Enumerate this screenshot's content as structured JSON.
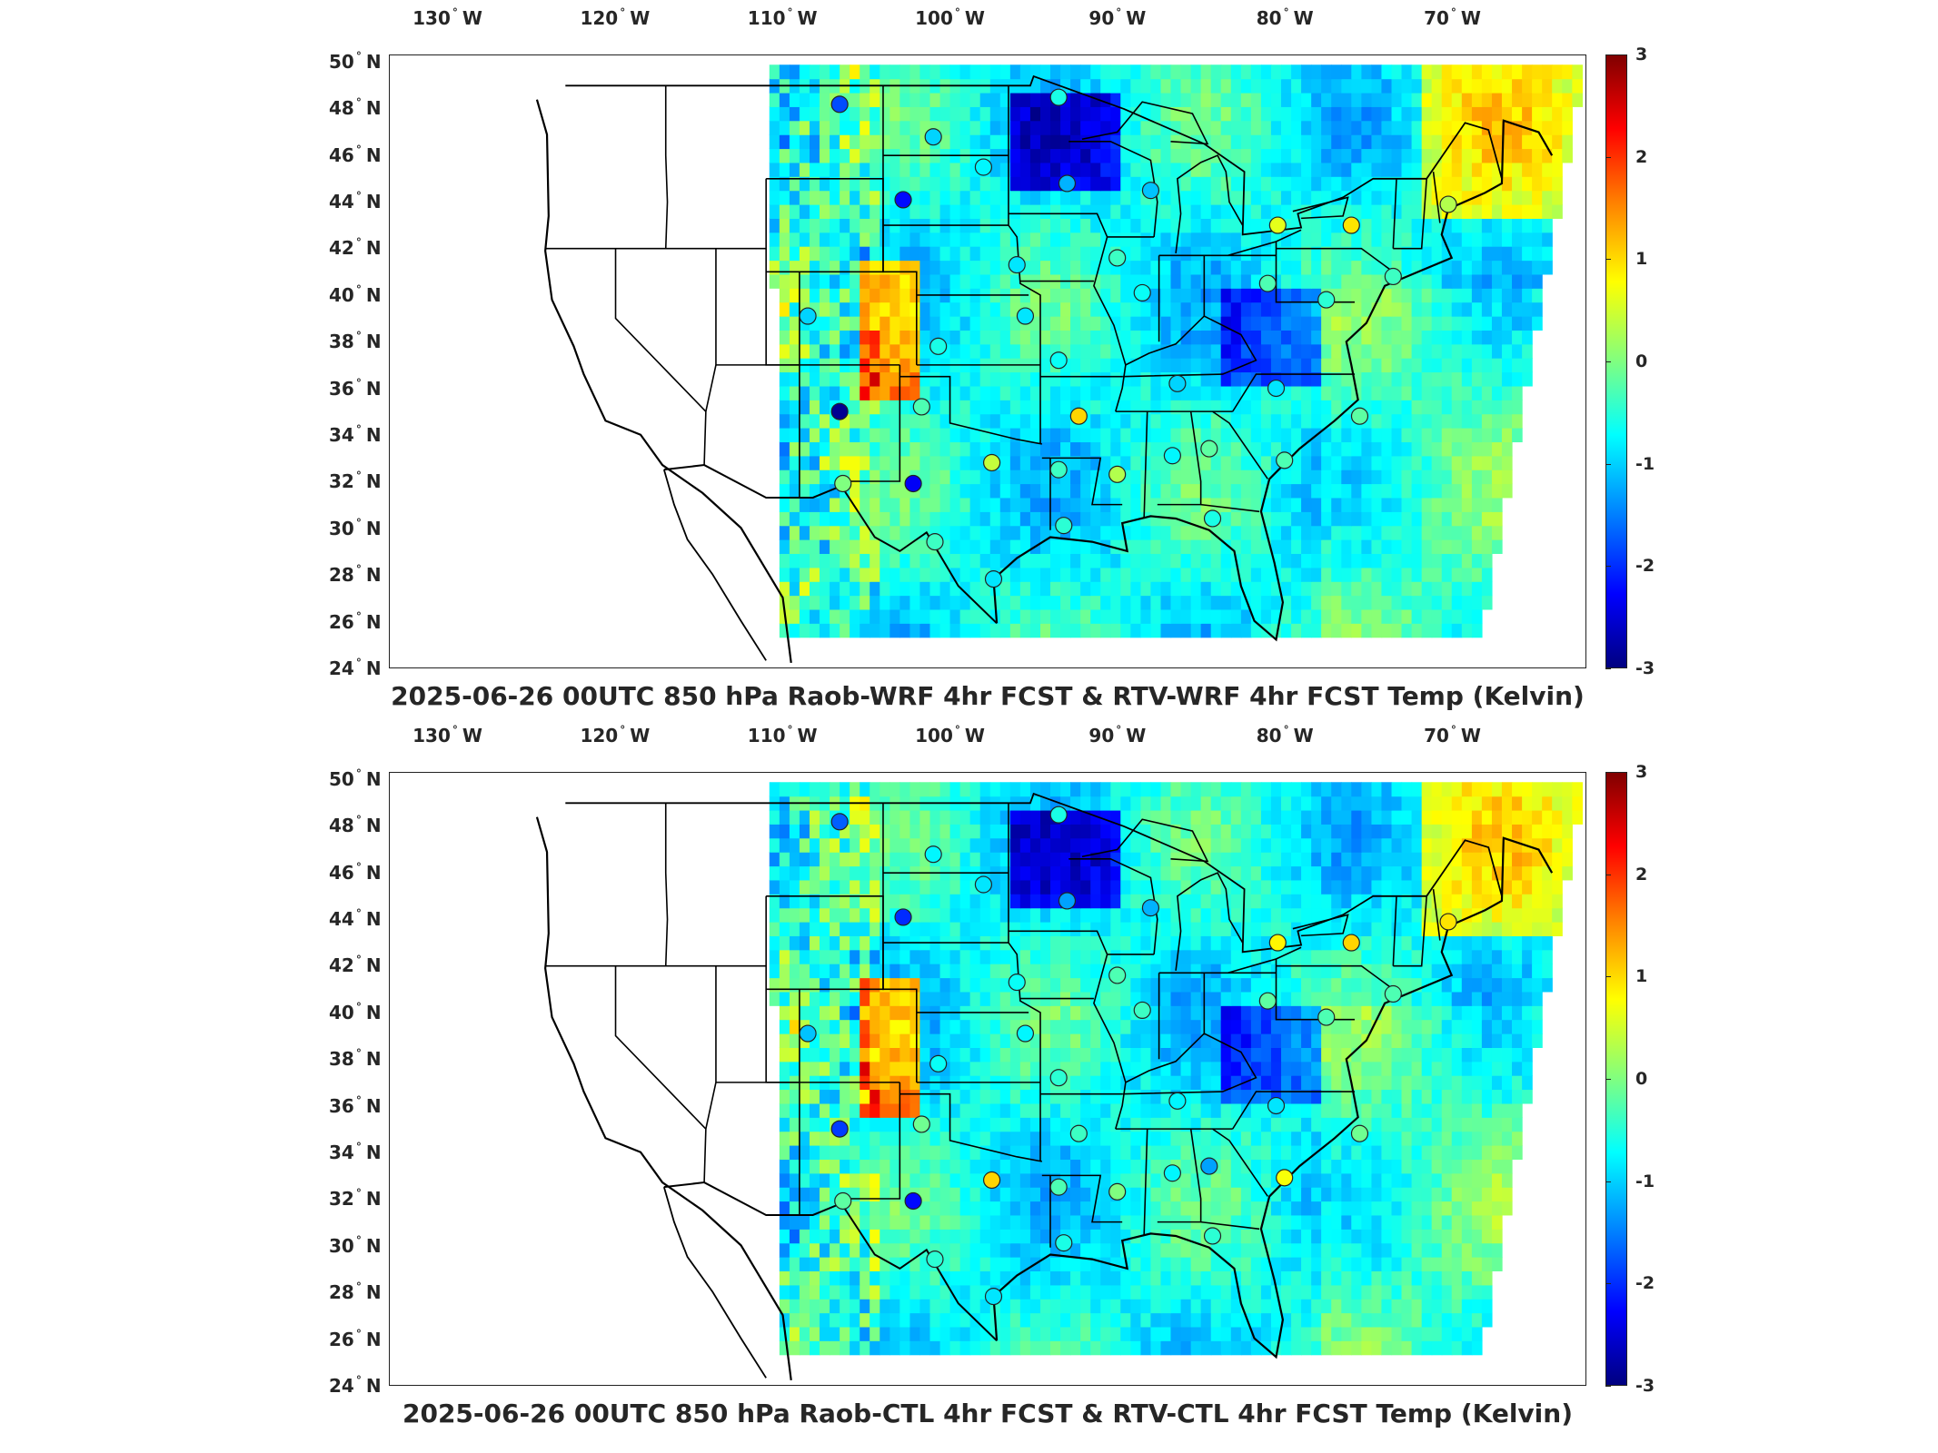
{
  "panels": [
    {
      "title": "2025-06-26 00UTC 850 hPa Raob-WRF 4hr FCST & RTV-WRF 4hr FCST Temp (Kelvin)",
      "stations": [
        {
          "lon": -106.6,
          "lat": 48.2,
          "v": -1.8
        },
        {
          "lon": -101.0,
          "lat": 46.8,
          "v": -1.0
        },
        {
          "lon": -98.0,
          "lat": 45.5,
          "v": -0.8
        },
        {
          "lon": -93.0,
          "lat": 44.8,
          "v": -1.2
        },
        {
          "lon": -88.0,
          "lat": 44.5,
          "v": -1.1
        },
        {
          "lon": -93.5,
          "lat": 48.5,
          "v": -0.6
        },
        {
          "lon": -102.8,
          "lat": 44.1,
          "v": -2.2
        },
        {
          "lon": -76.0,
          "lat": 43.0,
          "v": 0.9
        },
        {
          "lon": -70.2,
          "lat": 43.9,
          "v": 0.3
        },
        {
          "lon": -80.4,
          "lat": 43.0,
          "v": 0.6
        },
        {
          "lon": -90.0,
          "lat": 41.6,
          "v": -0.4
        },
        {
          "lon": -96.0,
          "lat": 41.3,
          "v": -0.9
        },
        {
          "lon": -88.5,
          "lat": 40.1,
          "v": -0.7
        },
        {
          "lon": -81.0,
          "lat": 40.5,
          "v": -0.3
        },
        {
          "lon": -77.5,
          "lat": 39.8,
          "v": -0.5
        },
        {
          "lon": -73.5,
          "lat": 40.8,
          "v": -0.4
        },
        {
          "lon": -95.5,
          "lat": 39.1,
          "v": -0.9
        },
        {
          "lon": -108.5,
          "lat": 39.1,
          "v": -1.0
        },
        {
          "lon": -100.7,
          "lat": 37.8,
          "v": -0.6
        },
        {
          "lon": -93.5,
          "lat": 37.2,
          "v": -0.7
        },
        {
          "lon": -86.4,
          "lat": 36.2,
          "v": -1.0
        },
        {
          "lon": -80.5,
          "lat": 36.0,
          "v": -0.9
        },
        {
          "lon": -75.5,
          "lat": 34.8,
          "v": -0.2
        },
        {
          "lon": -106.6,
          "lat": 35.0,
          "v": -2.9
        },
        {
          "lon": -101.7,
          "lat": 35.2,
          "v": -0.3
        },
        {
          "lon": -92.3,
          "lat": 34.8,
          "v": 1.0
        },
        {
          "lon": -97.5,
          "lat": 32.8,
          "v": 0.4
        },
        {
          "lon": -93.5,
          "lat": 32.5,
          "v": -0.4
        },
        {
          "lon": -90.0,
          "lat": 32.3,
          "v": 0.3
        },
        {
          "lon": -86.7,
          "lat": 33.1,
          "v": -0.8
        },
        {
          "lon": -84.5,
          "lat": 33.4,
          "v": -0.2
        },
        {
          "lon": -80.0,
          "lat": 32.9,
          "v": -0.3
        },
        {
          "lon": -102.2,
          "lat": 31.9,
          "v": -2.3
        },
        {
          "lon": -106.4,
          "lat": 31.9,
          "v": 0.0
        },
        {
          "lon": -100.9,
          "lat": 29.4,
          "v": -0.4
        },
        {
          "lon": -97.4,
          "lat": 27.8,
          "v": -0.9
        },
        {
          "lon": -93.2,
          "lat": 30.1,
          "v": -0.5
        },
        {
          "lon": -84.3,
          "lat": 30.4,
          "v": -0.6
        }
      ]
    },
    {
      "title": "2025-06-26 00UTC 850 hPa Raob-CTL 4hr FCST & RTV-CTL 4hr FCST Temp (Kelvin)",
      "stations": [
        {
          "lon": -106.6,
          "lat": 48.2,
          "v": -1.7
        },
        {
          "lon": -101.0,
          "lat": 46.8,
          "v": -0.8
        },
        {
          "lon": -98.0,
          "lat": 45.5,
          "v": -0.9
        },
        {
          "lon": -93.0,
          "lat": 44.8,
          "v": -1.3
        },
        {
          "lon": -88.0,
          "lat": 44.5,
          "v": -1.2
        },
        {
          "lon": -93.5,
          "lat": 48.5,
          "v": -0.6
        },
        {
          "lon": -102.8,
          "lat": 44.1,
          "v": -2.0
        },
        {
          "lon": -76.0,
          "lat": 43.0,
          "v": 1.0
        },
        {
          "lon": -70.2,
          "lat": 43.9,
          "v": 0.9
        },
        {
          "lon": -80.4,
          "lat": 43.0,
          "v": 0.8
        },
        {
          "lon": -90.0,
          "lat": 41.6,
          "v": -0.3
        },
        {
          "lon": -96.0,
          "lat": 41.3,
          "v": -0.7
        },
        {
          "lon": -88.5,
          "lat": 40.1,
          "v": -0.4
        },
        {
          "lon": -81.0,
          "lat": 40.5,
          "v": -0.2
        },
        {
          "lon": -77.5,
          "lat": 39.8,
          "v": -0.3
        },
        {
          "lon": -73.5,
          "lat": 40.8,
          "v": -0.3
        },
        {
          "lon": -95.5,
          "lat": 39.1,
          "v": -0.8
        },
        {
          "lon": -108.5,
          "lat": 39.1,
          "v": -1.1
        },
        {
          "lon": -100.7,
          "lat": 37.8,
          "v": -0.7
        },
        {
          "lon": -93.5,
          "lat": 37.2,
          "v": -0.5
        },
        {
          "lon": -86.4,
          "lat": 36.2,
          "v": -0.8
        },
        {
          "lon": -80.5,
          "lat": 36.0,
          "v": -0.9
        },
        {
          "lon": -75.5,
          "lat": 34.8,
          "v": -0.1
        },
        {
          "lon": -106.6,
          "lat": 35.0,
          "v": -1.9
        },
        {
          "lon": -101.7,
          "lat": 35.2,
          "v": -0.1
        },
        {
          "lon": -92.3,
          "lat": 34.8,
          "v": -0.4
        },
        {
          "lon": -97.5,
          "lat": 32.8,
          "v": 1.0
        },
        {
          "lon": -93.5,
          "lat": 32.5,
          "v": -0.3
        },
        {
          "lon": -90.0,
          "lat": 32.3,
          "v": 0.0
        },
        {
          "lon": -86.7,
          "lat": 33.1,
          "v": -0.8
        },
        {
          "lon": -84.5,
          "lat": 33.4,
          "v": -1.3
        },
        {
          "lon": -80.0,
          "lat": 32.9,
          "v": 0.7
        },
        {
          "lon": -102.2,
          "lat": 31.9,
          "v": -2.2
        },
        {
          "lon": -106.4,
          "lat": 31.9,
          "v": -0.2
        },
        {
          "lon": -100.9,
          "lat": 29.4,
          "v": -0.5
        },
        {
          "lon": -97.4,
          "lat": 27.8,
          "v": -0.9
        },
        {
          "lon": -93.2,
          "lat": 30.1,
          "v": -0.6
        },
        {
          "lon": -84.3,
          "lat": 30.4,
          "v": -0.5
        }
      ]
    }
  ],
  "lon_ticks": [
    {
      "value": "130",
      "hemi": "W"
    },
    {
      "value": "120",
      "hemi": "W"
    },
    {
      "value": "110",
      "hemi": "W"
    },
    {
      "value": "100",
      "hemi": "W"
    },
    {
      "value": "90",
      "hemi": "W"
    },
    {
      "value": "80",
      "hemi": "W"
    },
    {
      "value": "70",
      "hemi": "W"
    }
  ],
  "lat_ticks": [
    {
      "value": "50",
      "hemi": "N"
    },
    {
      "value": "48",
      "hemi": "N"
    },
    {
      "value": "46",
      "hemi": "N"
    },
    {
      "value": "44",
      "hemi": "N"
    },
    {
      "value": "42",
      "hemi": "N"
    },
    {
      "value": "40",
      "hemi": "N"
    },
    {
      "value": "38",
      "hemi": "N"
    },
    {
      "value": "36",
      "hemi": "N"
    },
    {
      "value": "34",
      "hemi": "N"
    },
    {
      "value": "32",
      "hemi": "N"
    },
    {
      "value": "30",
      "hemi": "N"
    },
    {
      "value": "28",
      "hemi": "N"
    },
    {
      "value": "26",
      "hemi": "N"
    },
    {
      "value": "24",
      "hemi": "N"
    }
  ],
  "colorbar": {
    "min": -3,
    "max": 3,
    "ticks": [
      "3",
      "2",
      "1",
      "0",
      "-1",
      "-2",
      "-3"
    ],
    "colormap": "jet"
  }
}
